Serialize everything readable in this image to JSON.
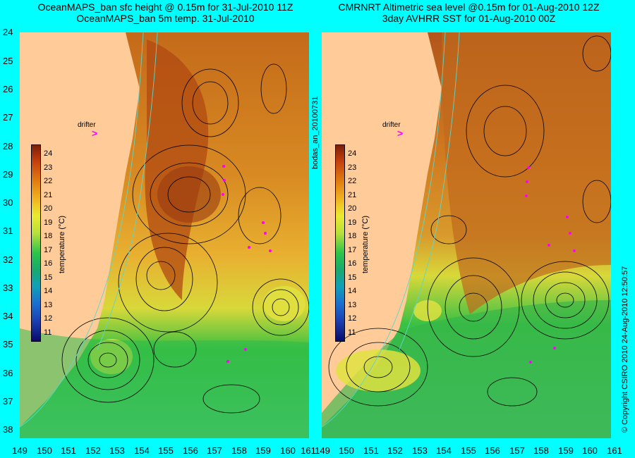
{
  "left_title": {
    "line1": "OceanMAPS_ban sfc height @ 0.15m for 31-Jul-2010 11Z",
    "line2": "OceanMAPS_ban 5m temp. 31-Jul-2010"
  },
  "right_title": {
    "line1": "CMRNRT Altimetric sea level  @0.15m  for 01-Aug-2010 12Z",
    "line2": "3day AVHRR SST for 01-Aug-2010 00Z"
  },
  "y_axis_labels": [
    "24",
    "25",
    "26",
    "27",
    "28",
    "29",
    "30",
    "31",
    "32",
    "33",
    "34",
    "35",
    "36",
    "37",
    "38"
  ],
  "x_axis_labels": [
    "149",
    "150",
    "151",
    "152",
    "153",
    "154",
    "155",
    "156",
    "157",
    "158",
    "159",
    "160",
    "161"
  ],
  "colorbar": {
    "ticks": [
      "24",
      "23",
      "22",
      "21",
      "20",
      "19",
      "18",
      "17",
      "16",
      "15",
      "14",
      "13",
      "12",
      "11"
    ],
    "unit": "temperature (°C)"
  },
  "drifter_label": "drifter",
  "analysis_tag": "bodas_an_20100731",
  "copyright": "© Copyright CSIRO 2010   24-Aug-2010 12:50:57"
}
